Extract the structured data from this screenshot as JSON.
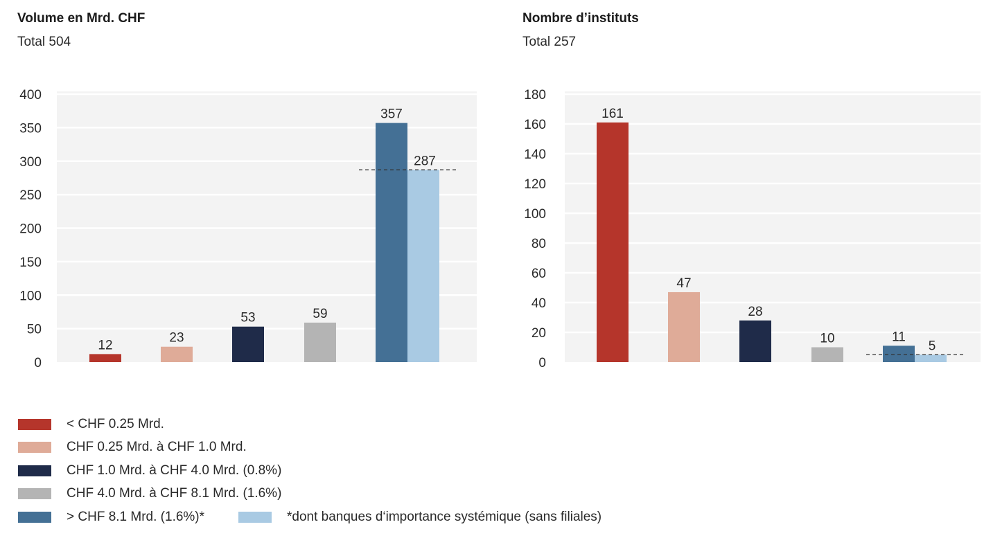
{
  "charts": [
    {
      "title": "Volume en Mrd. CHF",
      "total": "Total 504"
    },
    {
      "title": "Nombre d’instituts",
      "total": "Total 257"
    }
  ],
  "chart_data": [
    {
      "type": "bar",
      "title": "Volume en Mrd. CHF",
      "subtitle": "Total 504",
      "ylim": [
        0,
        400
      ],
      "yticks": [
        0,
        50,
        100,
        150,
        200,
        250,
        300,
        350,
        400
      ],
      "grid": true,
      "bars": [
        {
          "category": "< CHF 0.25 Mrd.",
          "value": 12,
          "label": "12",
          "color": "#b5352b"
        },
        {
          "category": "CHF 0.25 Mrd. à CHF 1.0 Mrd.",
          "value": 23,
          "label": "23",
          "color": "#dfab98"
        },
        {
          "category": "CHF 1.0 Mrd. à CHF 4.0 Mrd. (0.8%)",
          "value": 53,
          "label": "53",
          "color": "#1f2b49"
        },
        {
          "category": "CHF 4.0 Mrd. à CHF 8.1 Mrd. (1.6%)",
          "value": 59,
          "label": "59",
          "color": "#b4b4b4"
        },
        {
          "category": "> CHF 8.1 Mrd. (1.6%)*",
          "value": 357,
          "label": "357",
          "color": "#447095"
        }
      ],
      "sub_bar": {
        "category": "*dont banques d‘importance systémique (sans filiales)",
        "value": 287,
        "label": "287",
        "color": "#a9cae3"
      },
      "reference_line": 287
    },
    {
      "type": "bar",
      "title": "Nombre d’instituts",
      "subtitle": "Total 257",
      "ylim": [
        0,
        180
      ],
      "yticks": [
        0,
        20,
        40,
        60,
        80,
        100,
        120,
        140,
        160,
        180
      ],
      "grid": true,
      "bars": [
        {
          "category": "< CHF 0.25 Mrd.",
          "value": 161,
          "label": "161",
          "color": "#b5352b"
        },
        {
          "category": "CHF 0.25 Mrd. à CHF 1.0 Mrd.",
          "value": 47,
          "label": "47",
          "color": "#dfab98"
        },
        {
          "category": "CHF 1.0 Mrd. à CHF 4.0 Mrd. (0.8%)",
          "value": 28,
          "label": "28",
          "color": "#1f2b49"
        },
        {
          "category": "CHF 4.0 Mrd. à CHF 8.1 Mrd. (1.6%)",
          "value": 10,
          "label": "10",
          "color": "#b4b4b4"
        },
        {
          "category": "> CHF 8.1 Mrd. (1.6%)*",
          "value": 11,
          "label": "11",
          "color": "#447095"
        }
      ],
      "sub_bar": {
        "category": "*dont banques d‘importance systémique (sans filiales)",
        "value": 5,
        "label": "5",
        "color": "#a9cae3"
      },
      "reference_line": 5
    }
  ],
  "legend": [
    {
      "label": "< CHF 0.25 Mrd.",
      "color": "#b5352b"
    },
    {
      "label": "CHF 0.25 Mrd. à  CHF 1.0 Mrd.",
      "color": "#dfab98"
    },
    {
      "label": "CHF 1.0 Mrd. à  CHF 4.0 Mrd. (0.8%)",
      "color": "#1f2b49"
    },
    {
      "label": "CHF 4.0 Mrd. à  CHF 8.1 Mrd. (1.6%)",
      "color": "#b4b4b4"
    },
    {
      "label": "> CHF 8.1 Mrd. (1.6%)*",
      "color": "#447095"
    },
    {
      "label": "*dont banques d‘importance systémique (sans filiales)",
      "color": "#a9cae3"
    }
  ]
}
